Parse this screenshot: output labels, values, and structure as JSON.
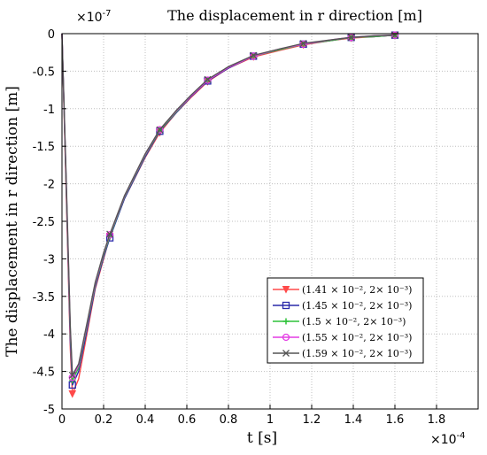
{
  "chart_data": {
    "type": "line",
    "title": "The displacement in r direction [m]",
    "xlabel": "t [s]",
    "ylabel": "The displacement in r direction [m]",
    "x_multiplier": "×10",
    "x_multiplier_exp": "-4",
    "y_multiplier": "×10",
    "y_multiplier_exp": "-7",
    "xlim": [
      0,
      2
    ],
    "ylim": [
      -5,
      0
    ],
    "x_ticks": [
      0,
      0.2,
      0.4,
      0.6,
      0.8,
      1,
      1.2,
      1.4,
      1.6,
      1.8
    ],
    "x_tick_labels": [
      "0",
      "0.2",
      "0.4",
      "0.6",
      "0.8",
      "1",
      "1.2",
      "1.4",
      "1.6",
      "1.8"
    ],
    "y_ticks": [
      0,
      -0.5,
      -1,
      -1.5,
      -2,
      -2.5,
      -3,
      -3.5,
      -4,
      -4.5,
      -5
    ],
    "y_tick_labels": [
      "0",
      "-0.5",
      "-1",
      "-1.5",
      "-2",
      "-2.5",
      "-3",
      "-3.5",
      "-4",
      "-4.5",
      "-5"
    ],
    "grid": true,
    "legend_position": "bottom-right",
    "series": [
      {
        "name": "(1.41 × 10⁻², 2× 10⁻³)",
        "color": "#ff4a4a",
        "marker": "triangle-down",
        "x": [
          0,
          0.02,
          0.04,
          0.05,
          0.08,
          0.12,
          0.16,
          0.2,
          0.23,
          0.3,
          0.4,
          0.47,
          0.55,
          0.62,
          0.7,
          0.8,
          0.92,
          1.05,
          1.16,
          1.3,
          1.39,
          1.5,
          1.6
        ],
        "y": [
          0,
          -2.1,
          -4.2,
          -4.8,
          -4.6,
          -4.0,
          -3.4,
          -3.0,
          -2.7,
          -2.2,
          -1.65,
          -1.32,
          -1.05,
          -0.85,
          -0.64,
          -0.46,
          -0.31,
          -0.22,
          -0.15,
          -0.09,
          -0.06,
          -0.04,
          -0.02
        ],
        "marker_x": [
          0.05,
          0.23,
          0.47,
          0.7,
          0.92,
          1.16,
          1.39,
          1.6
        ]
      },
      {
        "name": "(1.45 × 10⁻², 2× 10⁻³)",
        "color": "#2a2aaa",
        "marker": "square",
        "x": [
          0,
          0.02,
          0.04,
          0.05,
          0.08,
          0.12,
          0.16,
          0.2,
          0.23,
          0.3,
          0.4,
          0.47,
          0.55,
          0.62,
          0.7,
          0.8,
          0.92,
          1.05,
          1.16,
          1.3,
          1.39,
          1.5,
          1.6
        ],
        "y": [
          0,
          -2.0,
          -4.1,
          -4.68,
          -4.5,
          -3.95,
          -3.38,
          -2.98,
          -2.72,
          -2.2,
          -1.64,
          -1.3,
          -1.05,
          -0.84,
          -0.63,
          -0.46,
          -0.3,
          -0.21,
          -0.14,
          -0.09,
          -0.05,
          -0.04,
          -0.02
        ],
        "marker_x": [
          0.05,
          0.23,
          0.47,
          0.7,
          0.92,
          1.16,
          1.39,
          1.6
        ]
      },
      {
        "name": "(1.5 × 10⁻², 2× 10⁻³)",
        "color": "#2fc23a",
        "marker": "plus",
        "x": [
          0,
          0.02,
          0.04,
          0.05,
          0.08,
          0.12,
          0.16,
          0.2,
          0.23,
          0.3,
          0.4,
          0.47,
          0.55,
          0.62,
          0.7,
          0.8,
          0.92,
          1.05,
          1.16,
          1.3,
          1.39,
          1.5,
          1.6
        ],
        "y": [
          0,
          -2.0,
          -4.0,
          -4.62,
          -4.45,
          -3.9,
          -3.35,
          -2.95,
          -2.7,
          -2.18,
          -1.62,
          -1.29,
          -1.04,
          -0.83,
          -0.62,
          -0.45,
          -0.3,
          -0.21,
          -0.14,
          -0.09,
          -0.05,
          -0.04,
          -0.02
        ],
        "marker_x": [
          0.05,
          0.23,
          0.47,
          0.7,
          0.92,
          1.16,
          1.39,
          1.6
        ]
      },
      {
        "name": "(1.55 × 10⁻², 2× 10⁻³)",
        "color": "#e33be3",
        "marker": "circle",
        "x": [
          0,
          0.02,
          0.04,
          0.05,
          0.08,
          0.12,
          0.16,
          0.2,
          0.23,
          0.3,
          0.4,
          0.47,
          0.55,
          0.62,
          0.7,
          0.8,
          0.92,
          1.05,
          1.16,
          1.3,
          1.39,
          1.5,
          1.6
        ],
        "y": [
          0,
          -1.95,
          -3.95,
          -4.58,
          -4.42,
          -3.88,
          -3.33,
          -2.93,
          -2.68,
          -2.17,
          -1.61,
          -1.28,
          -1.03,
          -0.83,
          -0.62,
          -0.45,
          -0.3,
          -0.2,
          -0.14,
          -0.08,
          -0.05,
          -0.03,
          -0.02
        ],
        "marker_x": [
          0.05,
          0.23,
          0.47,
          0.7,
          0.92,
          1.16,
          1.39,
          1.6
        ]
      },
      {
        "name": "(1.59 × 10⁻², 2× 10⁻³)",
        "color": "#555555",
        "marker": "x",
        "x": [
          0,
          0.02,
          0.04,
          0.05,
          0.08,
          0.12,
          0.16,
          0.2,
          0.23,
          0.3,
          0.4,
          0.47,
          0.55,
          0.62,
          0.7,
          0.8,
          0.92,
          1.05,
          1.16,
          1.3,
          1.39,
          1.5,
          1.6
        ],
        "y": [
          0,
          -1.9,
          -3.9,
          -4.55,
          -4.4,
          -3.86,
          -3.31,
          -2.92,
          -2.67,
          -2.16,
          -1.6,
          -1.28,
          -1.02,
          -0.82,
          -0.61,
          -0.44,
          -0.29,
          -0.2,
          -0.13,
          -0.08,
          -0.05,
          -0.03,
          -0.02
        ],
        "marker_x": [
          0.05,
          0.23,
          0.47,
          0.7,
          0.92,
          1.16,
          1.39,
          1.6
        ]
      }
    ]
  }
}
